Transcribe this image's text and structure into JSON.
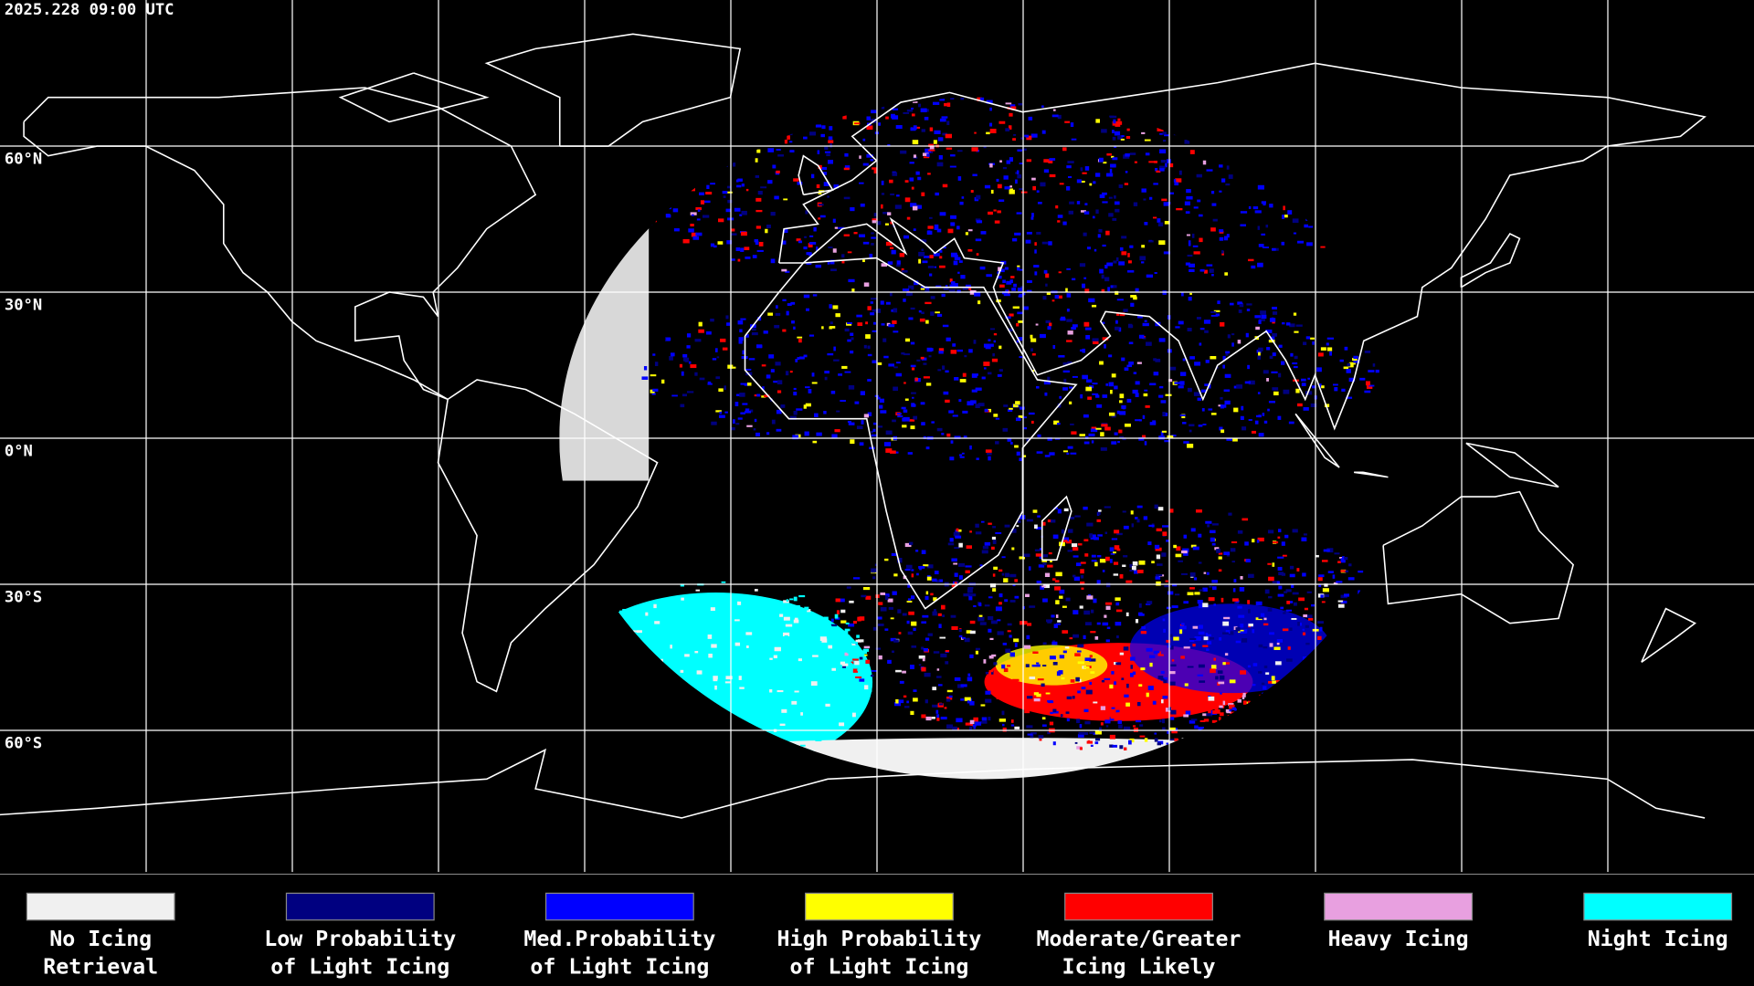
{
  "header": {
    "title": "2025.228 09:00 UTC"
  },
  "map": {
    "lat_labels": [
      "60°N",
      "30°N",
      "0°N",
      "30°S",
      "60°S"
    ]
  },
  "legend": {
    "items": [
      {
        "lines": [
          "No Icing",
          "Retrieval"
        ],
        "color": "#f0f0f0"
      },
      {
        "lines": [
          "Low Probability",
          "of Light Icing"
        ],
        "color": "#000080"
      },
      {
        "lines": [
          "Med.Probability",
          "of Light Icing"
        ],
        "color": "#0000ff"
      },
      {
        "lines": [
          "High Probability",
          "of Light Icing"
        ],
        "color": "#ffff00"
      },
      {
        "lines": [
          "Moderate/Greater",
          "Icing Likely"
        ],
        "color": "#ff0000"
      },
      {
        "lines": [
          "Heavy Icing"
        ],
        "color": "#e8a0e0"
      },
      {
        "lines": [
          "Night Icing"
        ],
        "color": "#00ffff"
      }
    ]
  }
}
